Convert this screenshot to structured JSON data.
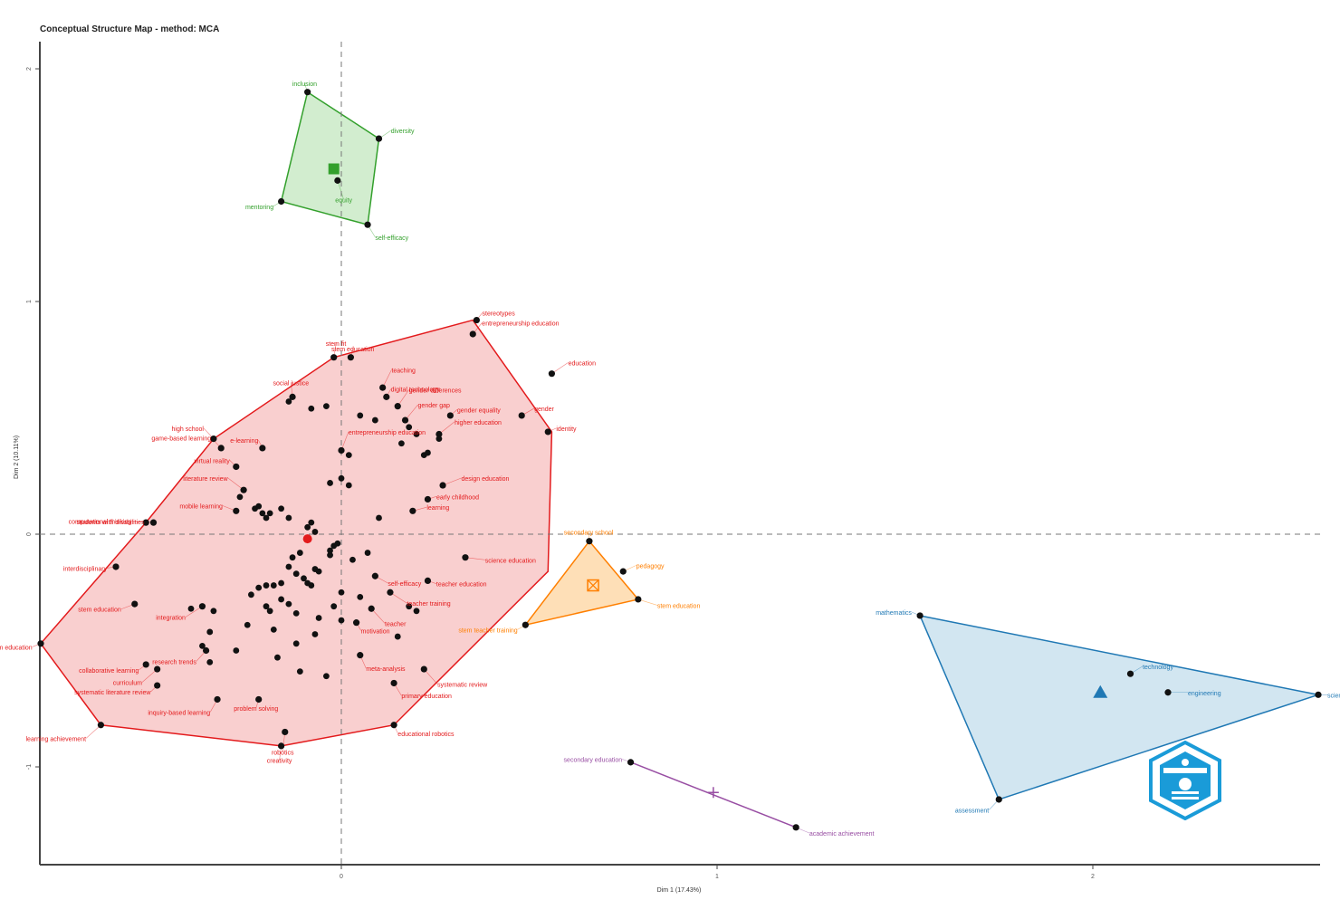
{
  "title": "Conceptual Structure Map - method: MCA",
  "chart_data": {
    "type": "scatter",
    "title": "Conceptual Structure Map - method: MCA",
    "xlabel": "Dim 1 (17.43%)",
    "ylabel": "Dim 2 (10.11%)",
    "xlim": [
      -0.8,
      2.6
    ],
    "ylim": [
      -0.9,
      2.1
    ],
    "x_ticks": [
      0,
      1,
      2
    ],
    "y_ticks": [
      -1,
      0,
      1,
      2
    ],
    "grid": false,
    "origin_lines": true,
    "clusters": [
      {
        "color": "#e31a1c",
        "fill": "#f4a0a0",
        "centroid": [
          -0.09,
          -0.02
        ],
        "hull": [
          [
            -0.8,
            -0.47
          ],
          [
            -0.64,
            -0.82
          ],
          [
            -0.16,
            -0.91
          ],
          [
            0.14,
            -0.82
          ],
          [
            0.55,
            -0.16
          ],
          [
            0.56,
            0.44
          ],
          [
            0.35,
            0.92
          ],
          [
            -0.02,
            0.76
          ],
          [
            -0.34,
            0.41
          ],
          [
            -0.52,
            0.05
          ]
        ],
        "points": [
          {
            "label": "stereotypes",
            "x": 0.36,
            "y": 0.92
          },
          {
            "label": "entrepreneurship education",
            "x": 0.35,
            "y": 0.86
          },
          {
            "label": "education",
            "x": 0.56,
            "y": 0.69
          },
          {
            "label": "stem education",
            "x": 0.025,
            "y": 0.76
          },
          {
            "label": "stem fit",
            "x": -0.02,
            "y": 0.76
          },
          {
            "label": "teaching",
            "x": 0.11,
            "y": 0.63
          },
          {
            "label": "digital technology",
            "x": 0.12,
            "y": 0.59
          },
          {
            "label": "social justice",
            "x": -0.13,
            "y": 0.59
          },
          {
            "label": "gender differences",
            "x": 0.15,
            "y": 0.55
          },
          {
            "label": "gender equality",
            "x": 0.29,
            "y": 0.51
          },
          {
            "label": "gender",
            "x": 0.48,
            "y": 0.51
          },
          {
            "label": "gender gap",
            "x": 0.17,
            "y": 0.49
          },
          {
            "label": "identity",
            "x": 0.55,
            "y": 0.44
          },
          {
            "label": "high school",
            "x": -0.34,
            "y": 0.41
          },
          {
            "label": "higher education",
            "x": 0.26,
            "y": 0.43
          },
          {
            "label": "e-learning",
            "x": -0.21,
            "y": 0.37
          },
          {
            "label": "game-based learning",
            "x": -0.32,
            "y": 0.37
          },
          {
            "label": "entrepreneurship education",
            "x": 0.0,
            "y": 0.36
          },
          {
            "label": "virtual reality",
            "x": -0.28,
            "y": 0.29
          },
          {
            "label": "computational thinking",
            "x": -0.52,
            "y": 0.05
          },
          {
            "label": "literature review",
            "x": -0.26,
            "y": 0.19
          },
          {
            "label": "students with disabilities",
            "x": -0.5,
            "y": 0.05
          },
          {
            "label": "mobile learning",
            "x": -0.28,
            "y": 0.1
          },
          {
            "label": "design education",
            "x": 0.27,
            "y": 0.21
          },
          {
            "label": "early childhood",
            "x": 0.23,
            "y": 0.15
          },
          {
            "label": "learning",
            "x": 0.19,
            "y": 0.1
          },
          {
            "label": "science education",
            "x": 0.33,
            "y": -0.1
          },
          {
            "label": "teacher education",
            "x": 0.23,
            "y": -0.2
          },
          {
            "label": "self-efficacy",
            "x": 0.09,
            "y": -0.18
          },
          {
            "label": "teacher training",
            "x": 0.13,
            "y": -0.25
          },
          {
            "label": "interdisciplinary",
            "x": -0.6,
            "y": -0.14
          },
          {
            "label": "stem education",
            "x": -0.55,
            "y": -0.3
          },
          {
            "label": "integration",
            "x": -0.37,
            "y": -0.31
          },
          {
            "label": "stem education",
            "x": -0.8,
            "y": -0.47
          },
          {
            "label": "research trends",
            "x": -0.36,
            "y": -0.5
          },
          {
            "label": "teacher",
            "x": 0.08,
            "y": -0.32
          },
          {
            "label": "motivation",
            "x": 0.04,
            "y": -0.38
          },
          {
            "label": "meta-analysis",
            "x": 0.05,
            "y": -0.52
          },
          {
            "label": "curriculum",
            "x": -0.49,
            "y": -0.58
          },
          {
            "label": "systematic literature review",
            "x": -0.49,
            "y": -0.65
          },
          {
            "label": "inquiry-based learning",
            "x": -0.33,
            "y": -0.71
          },
          {
            "label": "learning achievement",
            "x": -0.64,
            "y": -0.82
          },
          {
            "label": "problem solving",
            "x": -0.22,
            "y": -0.71
          },
          {
            "label": "primary education",
            "x": 0.14,
            "y": -0.64
          },
          {
            "label": "systematic review",
            "x": 0.22,
            "y": -0.58
          },
          {
            "label": "educational robotics",
            "x": 0.14,
            "y": -0.82
          },
          {
            "label": "creativity",
            "x": -0.16,
            "y": -0.91
          },
          {
            "label": "robotics",
            "x": -0.15,
            "y": -0.85
          },
          {
            "label": "collaborative learning",
            "x": -0.52,
            "y": -0.56
          }
        ],
        "extra_points": [
          [
            -0.14,
            0.57
          ],
          [
            -0.08,
            0.54
          ],
          [
            -0.04,
            0.55
          ],
          [
            0.05,
            0.51
          ],
          [
            0.09,
            0.49
          ],
          [
            0.18,
            0.46
          ],
          [
            0.2,
            0.43
          ],
          [
            0.16,
            0.39
          ],
          [
            0.22,
            0.34
          ],
          [
            0.23,
            0.35
          ],
          [
            0.26,
            0.41
          ],
          [
            0.02,
            0.34
          ],
          [
            0.0,
            0.24
          ],
          [
            -0.03,
            0.22
          ],
          [
            0.02,
            0.21
          ],
          [
            -0.27,
            0.16
          ],
          [
            -0.23,
            0.11
          ],
          [
            -0.21,
            0.09
          ],
          [
            -0.2,
            0.07
          ],
          [
            -0.22,
            0.12
          ],
          [
            -0.19,
            0.09
          ],
          [
            -0.16,
            0.11
          ],
          [
            -0.14,
            0.07
          ],
          [
            -0.09,
            0.03
          ],
          [
            -0.07,
            0.01
          ],
          [
            -0.08,
            0.05
          ],
          [
            -0.02,
            -0.05
          ],
          [
            -0.03,
            -0.07
          ],
          [
            -0.01,
            -0.04
          ],
          [
            0.1,
            0.07
          ],
          [
            0.07,
            -0.08
          ],
          [
            -0.11,
            -0.08
          ],
          [
            -0.13,
            -0.1
          ],
          [
            -0.14,
            -0.14
          ],
          [
            -0.12,
            -0.17
          ],
          [
            -0.1,
            -0.19
          ],
          [
            -0.09,
            -0.21
          ],
          [
            -0.07,
            -0.15
          ],
          [
            -0.16,
            -0.21
          ],
          [
            -0.18,
            -0.22
          ],
          [
            -0.2,
            -0.22
          ],
          [
            -0.22,
            -0.23
          ],
          [
            -0.24,
            -0.26
          ],
          [
            -0.2,
            -0.31
          ],
          [
            -0.19,
            -0.33
          ],
          [
            -0.16,
            -0.28
          ],
          [
            -0.14,
            -0.3
          ],
          [
            -0.12,
            -0.34
          ],
          [
            -0.06,
            -0.36
          ],
          [
            -0.02,
            -0.31
          ],
          [
            0.0,
            -0.25
          ],
          [
            -0.08,
            -0.22
          ],
          [
            -0.34,
            -0.33
          ],
          [
            -0.35,
            -0.42
          ],
          [
            -0.28,
            -0.5
          ],
          [
            -0.35,
            -0.55
          ],
          [
            -0.17,
            -0.53
          ],
          [
            -0.11,
            -0.59
          ],
          [
            -0.04,
            -0.61
          ],
          [
            0.2,
            -0.33
          ],
          [
            0.18,
            -0.31
          ],
          [
            0.15,
            -0.44
          ],
          [
            0.05,
            -0.27
          ],
          [
            0.0,
            -0.37
          ],
          [
            -0.07,
            -0.43
          ],
          [
            -0.12,
            -0.47
          ],
          [
            -0.18,
            -0.41
          ],
          [
            -0.4,
            -0.32
          ],
          [
            -0.37,
            -0.48
          ],
          [
            -0.25,
            -0.39
          ],
          [
            -0.06,
            -0.16
          ],
          [
            0.03,
            -0.11
          ],
          [
            -0.03,
            -0.09
          ]
        ]
      },
      {
        "color": "#33a02c",
        "fill": "#a6dba0",
        "centroid": [
          -0.02,
          1.57
        ],
        "hull": [
          [
            -0.09,
            1.9
          ],
          [
            0.1,
            1.7
          ],
          [
            0.07,
            1.33
          ],
          [
            -0.16,
            1.43
          ]
        ],
        "points": [
          {
            "label": "inclusion",
            "x": -0.09,
            "y": 1.9
          },
          {
            "label": "diversity",
            "x": 0.1,
            "y": 1.7
          },
          {
            "label": "equity",
            "x": -0.01,
            "y": 1.52
          },
          {
            "label": "mentoring",
            "x": -0.16,
            "y": 1.43
          },
          {
            "label": "self-efficacy",
            "x": 0.07,
            "y": 1.33
          }
        ]
      },
      {
        "color": "#ff7f00",
        "fill": "#fdbf6f",
        "centroid": [
          0.67,
          -0.22
        ],
        "hull": [
          [
            0.66,
            -0.03
          ],
          [
            0.79,
            -0.28
          ],
          [
            0.49,
            -0.39
          ]
        ],
        "points": [
          {
            "label": "secondary school",
            "x": 0.66,
            "y": -0.03
          },
          {
            "label": "pedagogy",
            "x": 0.75,
            "y": -0.16
          },
          {
            "label": "stem education",
            "x": 0.79,
            "y": -0.28
          },
          {
            "label": "stem teacher training",
            "x": 0.49,
            "y": -0.39
          }
        ]
      },
      {
        "color": "#1f78b4",
        "fill": "#a6cee3",
        "centroid": [
          2.02,
          -0.68
        ],
        "hull": [
          [
            1.54,
            -0.35
          ],
          [
            2.6,
            -0.69
          ],
          [
            1.75,
            -1.14
          ]
        ],
        "points": [
          {
            "label": "mathematics",
            "x": 1.54,
            "y": -0.35
          },
          {
            "label": "technology",
            "x": 2.1,
            "y": -0.6
          },
          {
            "label": "engineering",
            "x": 2.2,
            "y": -0.68
          },
          {
            "label": "science",
            "x": 2.6,
            "y": -0.69
          },
          {
            "label": "assessment",
            "x": 1.75,
            "y": -1.14
          }
        ]
      },
      {
        "color": "#984ea3",
        "fill": "none",
        "centroid": [
          0.99,
          -1.11
        ],
        "hull": [
          [
            0.77,
            -0.98
          ],
          [
            1.21,
            -1.26
          ]
        ],
        "points": [
          {
            "label": "secondary education",
            "x": 0.77,
            "y": -0.98
          },
          {
            "label": "academic achievement",
            "x": 1.21,
            "y": -1.26
          }
        ]
      }
    ]
  },
  "icons": {
    "logo": "publisher-hexagon-logo"
  }
}
